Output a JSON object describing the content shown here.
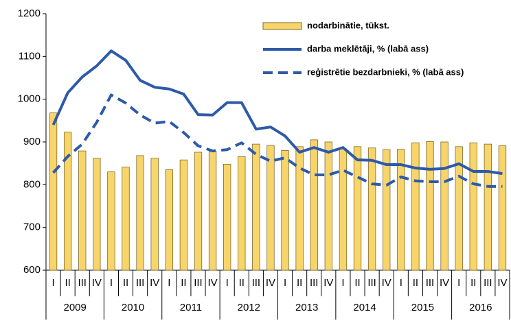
{
  "chart_data": {
    "type": "bar_line",
    "categories": [
      "I",
      "II",
      "III",
      "IV",
      "I",
      "II",
      "III",
      "IV",
      "I",
      "II",
      "III",
      "IV",
      "I",
      "II",
      "III",
      "IV",
      "I",
      "II",
      "III",
      "IV",
      "I",
      "II",
      "III",
      "IV",
      "I",
      "II",
      "III",
      "IV",
      "I",
      "II",
      "III",
      "IV"
    ],
    "years": [
      "2009",
      "2010",
      "2011",
      "2012",
      "2013",
      "2014",
      "2015",
      "2016"
    ],
    "ylim": [
      600,
      1200
    ],
    "yticks": [
      600,
      700,
      800,
      900,
      1000,
      1100,
      1200
    ],
    "legend": "upper right",
    "series": [
      {
        "name": "nodarbinātie, tūkst.",
        "type": "bar",
        "color": "#f7d56b",
        "values": [
          968,
          923,
          879,
          862,
          830,
          841,
          868,
          862,
          835,
          858,
          876,
          878,
          848,
          866,
          895,
          892,
          880,
          889,
          905,
          900,
          884,
          889,
          886,
          882,
          883,
          898,
          901,
          900,
          889,
          898,
          895,
          891
        ]
      },
      {
        "name": "darba meklētāji, % (labā ass)",
        "type": "line",
        "color": "#2e5aa8",
        "dash": false,
        "values": [
          940,
          1015,
          1052,
          1078,
          1113,
          1091,
          1044,
          1028,
          1024,
          1012,
          964,
          963,
          992,
          992,
          930,
          935,
          914,
          876,
          887,
          876,
          887,
          858,
          857,
          847,
          847,
          839,
          836,
          838,
          849,
          831,
          831,
          826
        ]
      },
      {
        "name": "reģistrētie bezdarbnieki, % (labā ass)",
        "type": "line",
        "color": "#2e5aa8",
        "dash": true,
        "values": [
          828,
          866,
          895,
          946,
          1010,
          991,
          963,
          944,
          948,
          922,
          891,
          879,
          882,
          898,
          871,
          855,
          863,
          839,
          823,
          823,
          834,
          818,
          802,
          799,
          818,
          809,
          807,
          807,
          820,
          802,
          796,
          796
        ]
      }
    ]
  }
}
